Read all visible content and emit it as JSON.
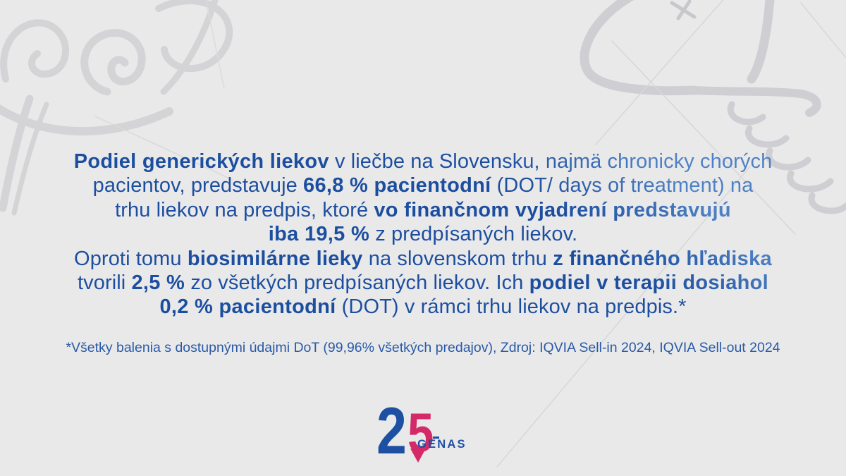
{
  "colors": {
    "background": "#e9e9ea",
    "text_dark": "#1c4e9f",
    "text_light": "#4e81c4",
    "footnote": "#2a5aa6",
    "logo_blue": "#1d4fa3",
    "logo_pink": "#d42a68"
  },
  "main_text": {
    "lines": [
      [
        {
          "t": "Podiel generických liekov",
          "b": true
        },
        {
          "t": " v liečbe na Slovensku, najmä chronicky chorých",
          "b": false
        }
      ],
      [
        {
          "t": "pacientov, predstavuje ",
          "b": false
        },
        {
          "t": "66,8 % pacientodní",
          "b": true
        },
        {
          "t": " (DOT/ days of treatment) na",
          "b": false
        }
      ],
      [
        {
          "t": "trhu liekov na predpis, ktoré ",
          "b": false
        },
        {
          "t": "vo finančnom vyjadrení predstavujú",
          "b": true
        }
      ],
      [
        {
          "t": "iba 19,5 %",
          "b": true
        },
        {
          "t": " z predpísaných liekov.",
          "b": false
        }
      ],
      [
        {
          "t": "Oproti tomu ",
          "b": false
        },
        {
          "t": "biosimilárne lieky",
          "b": true
        },
        {
          "t": " na slovenskom trhu ",
          "b": false
        },
        {
          "t": "z finančného hľadiska",
          "b": true
        }
      ],
      [
        {
          "t": "tvorili ",
          "b": false
        },
        {
          "t": "2,5 %",
          "b": true
        },
        {
          "t": " zo všetkých predpísaných liekov. Ich ",
          "b": false
        },
        {
          "t": "podiel v terapii dosiahol",
          "b": true
        }
      ],
      [
        {
          "t": "0,2 % pacientodní",
          "b": true
        },
        {
          "t": " (DOT) v rámci trhu liekov na predpis.*",
          "b": false
        }
      ]
    ]
  },
  "footnote": {
    "text": "*Všetky balenia s dostupnými údajmi DoT (99,96% všetkých predajov), Zdroj: IQVIA Sell-in 2024, IQVIA Sell-out 2024"
  },
  "logo": {
    "digit_2": "2",
    "digit_5": "5",
    "wordmark": "GENAS"
  }
}
